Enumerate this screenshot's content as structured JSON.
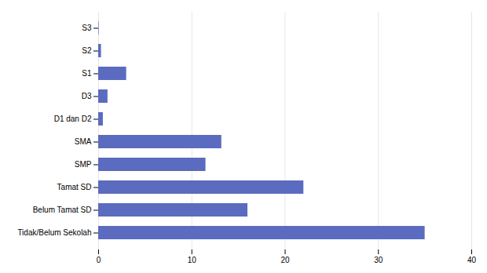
{
  "chart_data": {
    "type": "bar",
    "orientation": "horizontal",
    "categories": [
      "Tidak/Belum Sekolah",
      "Belum Tamat SD",
      "Tamat SD",
      "SMP",
      "SMA",
      "D1 dan D2",
      "D3",
      "S1",
      "S2",
      "S3"
    ],
    "values": [
      35.0,
      16.0,
      22.0,
      11.5,
      13.2,
      0.5,
      1.0,
      3.0,
      0.3,
      0.05
    ],
    "color": "#5b6bbf",
    "xlim": [
      0,
      40
    ],
    "xticks": [
      0,
      10,
      20,
      30,
      40
    ],
    "grid": true
  }
}
